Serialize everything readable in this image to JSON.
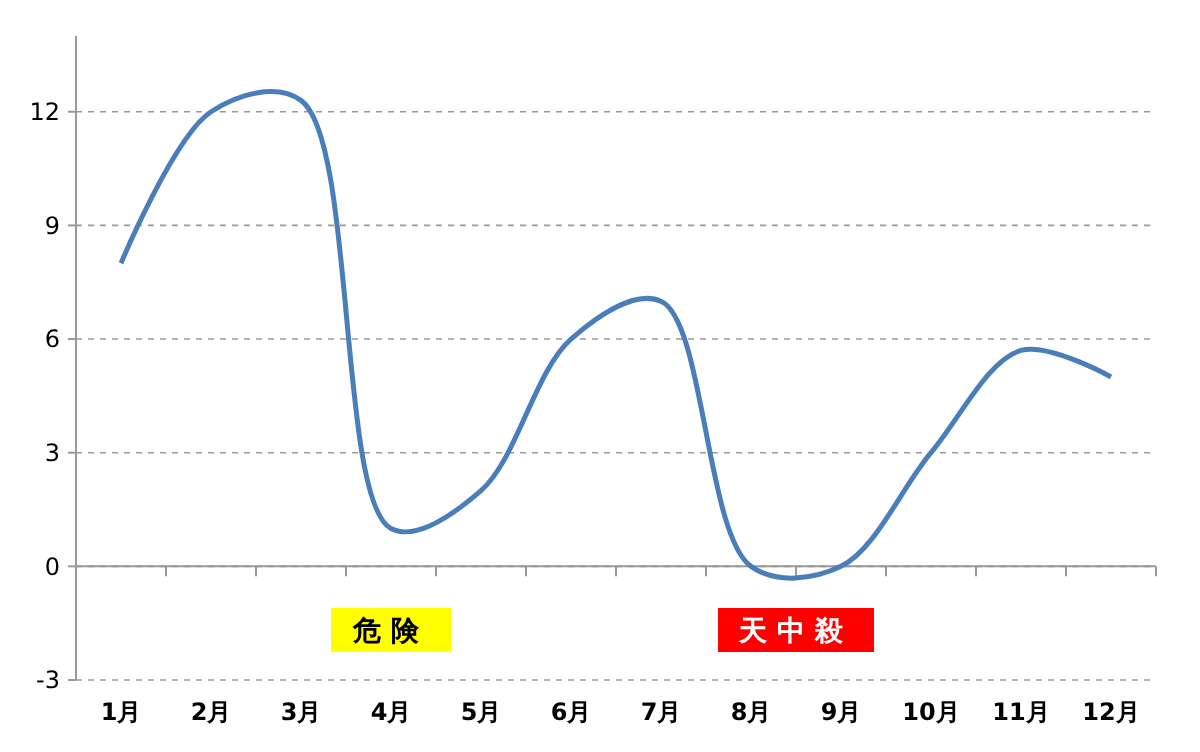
{
  "chart_data": {
    "type": "line",
    "categories": [
      "1月",
      "2月",
      "3月",
      "4月",
      "5月",
      "6月",
      "7月",
      "8月",
      "9月",
      "10月",
      "11月",
      "12月"
    ],
    "series": [
      {
        "color": "#4a7ebb",
        "values": [
          8,
          12,
          12.3,
          1,
          2,
          6,
          7,
          0,
          0,
          3,
          5.7,
          5
        ]
      }
    ],
    "ylim": [
      -3,
      14
    ],
    "yticks": [
      -3,
      0,
      3,
      6,
      9,
      12
    ],
    "grid": "y",
    "marker": "none",
    "line_style": "solid",
    "annotations": [
      "危険",
      "天中殺"
    ]
  }
}
